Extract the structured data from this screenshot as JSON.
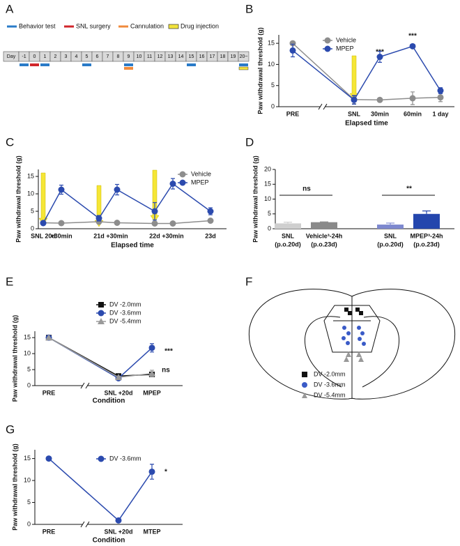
{
  "panel_a": {
    "panel_label": "A",
    "day_label": "Day",
    "days": [
      "-1",
      "0",
      "1",
      "2",
      "3",
      "4",
      "5",
      "6",
      "7",
      "8",
      "9",
      "10",
      "11",
      "12",
      "13",
      "14",
      "15",
      "16",
      "17",
      "18",
      "19",
      "20~"
    ],
    "events": [
      {
        "name": "Behavior test",
        "color": "#2a7bc8",
        "days": [
          "-1",
          "1",
          "5",
          "9",
          "15",
          "20~"
        ]
      },
      {
        "name": "SNL surgery",
        "color": "#d1262b",
        "days": [
          "0"
        ]
      },
      {
        "name": "Cannulation",
        "color": "#f08a3c",
        "days": [
          "9"
        ]
      },
      {
        "name": "Drug injection",
        "color": "#f2e33c",
        "days": [
          "20~"
        ]
      }
    ]
  },
  "chart_data": [
    {
      "panel_label": "B",
      "type": "line",
      "x_label": "Elapsed time",
      "y_label": "Paw withdrawal threshold (g)",
      "categories": [
        "PRE",
        "SNL",
        "30min",
        "60min",
        "1 day"
      ],
      "series": [
        {
          "name": "Vehicle",
          "color": "#8d8d8d",
          "marker": "circle",
          "values": [
            15,
            1.7,
            1.6,
            2.0,
            2.2
          ],
          "errors": [
            0.3,
            1.0,
            0.2,
            1.5,
            1.0
          ]
        },
        {
          "name": "MPEP",
          "color": "#2b4aae",
          "marker": "circle",
          "values": [
            13.3,
            1.6,
            11.8,
            14.3,
            3.8
          ],
          "errors": [
            1.5,
            1.0,
            1.3,
            0.3,
            0.7
          ]
        }
      ],
      "annotations": [
        "***",
        "***"
      ],
      "ylim": [
        0,
        17
      ],
      "yticks": [
        0,
        5,
        10,
        15
      ]
    },
    {
      "panel_label": "C",
      "type": "line",
      "x_label": "Elapsed time",
      "y_label": "Paw withdrawal threshold (g)",
      "categories": [
        "SNL 20d",
        "+30min",
        "21d",
        "+30min",
        "22d",
        "+30min",
        "23d"
      ],
      "series": [
        {
          "name": "Vehicle",
          "color": "#8d8d8d",
          "marker": "circle",
          "values": [
            1.7,
            1.6,
            2.0,
            1.7,
            1.5,
            1.5,
            2.3
          ],
          "errors": [
            0.3,
            0.2,
            0.3,
            0.2,
            0.2,
            0.2,
            0.3
          ]
        },
        {
          "name": "MPEP",
          "color": "#2b4aae",
          "marker": "circle",
          "values": [
            1.6,
            11.2,
            3.0,
            11.2,
            5.0,
            12.9,
            5.0
          ],
          "errors": [
            0.3,
            1.3,
            0.8,
            1.5,
            2.5,
            1.5,
            1.0
          ]
        }
      ],
      "annotations": [],
      "ylim": [
        0,
        17
      ],
      "yticks": [
        0,
        5,
        10,
        15
      ]
    },
    {
      "panel_label": "D",
      "type": "bar",
      "y_label": "Paw withdrawal threshold (g)",
      "categories": [
        "SNL",
        "Vehicle³-24h",
        "SNL",
        "MPEP³-24h"
      ],
      "category_sublabels": [
        "(p.o.20d)",
        "(p.o.23d)",
        "(p.o.20d)",
        "(p.o.23d)"
      ],
      "values": [
        1.8,
        2.2,
        1.4,
        5.0
      ],
      "errors": [
        0.4,
        0.1,
        0.5,
        1.0
      ],
      "colors": [
        "#cfcfcf",
        "#8a8a8a",
        "#7d88cf",
        "#2446ad"
      ],
      "annotations": [
        "ns",
        "**"
      ],
      "ylim": [
        0,
        20
      ],
      "yticks": [
        0,
        5,
        10,
        15,
        20
      ]
    },
    {
      "panel_label": "E",
      "type": "line",
      "x_label": "Condition",
      "y_label": "Paw withdrawal threshold (g)",
      "categories": [
        "PRE",
        "SNL +20d",
        "MPEP"
      ],
      "series": [
        {
          "name": "DV -2.0mm",
          "color": "#111111",
          "marker": "square",
          "values": [
            15,
            3.0,
            3.5
          ],
          "errors": [
            0,
            0.3,
            0.5
          ]
        },
        {
          "name": "DV -3.6mm",
          "color": "#2b4aae",
          "marker": "circle",
          "values": [
            15,
            2.3,
            11.8
          ],
          "errors": [
            0,
            0.4,
            1.3
          ]
        },
        {
          "name": "DV -5.4mm",
          "color": "#9a9a9a",
          "marker": "triangle",
          "values": [
            15,
            2.6,
            3.8
          ],
          "errors": [
            0,
            0.3,
            1.0
          ]
        }
      ],
      "annotations": [
        "***",
        "ns"
      ],
      "ylim": [
        0,
        17
      ],
      "yticks": [
        0,
        5,
        10,
        15
      ]
    },
    {
      "panel_label": "G",
      "type": "line",
      "x_label": "Condition",
      "y_label": "Paw withdrawal threshold (g)",
      "categories": [
        "PRE",
        "SNL +20d",
        "MTEP"
      ],
      "series": [
        {
          "name": "DV -3.6mm",
          "color": "#2b4aae",
          "marker": "circle",
          "values": [
            15,
            0.9,
            12.0
          ],
          "errors": [
            0,
            0.1,
            1.7
          ]
        }
      ],
      "annotations": [
        "*"
      ],
      "ylim": [
        0,
        17
      ],
      "yticks": [
        0,
        5,
        10,
        15
      ]
    }
  ],
  "panel_f": {
    "panel_label": "F",
    "legend": [
      "DV -2.0mm",
      "DV -3.6mm",
      "DV -5.4mm"
    ]
  }
}
